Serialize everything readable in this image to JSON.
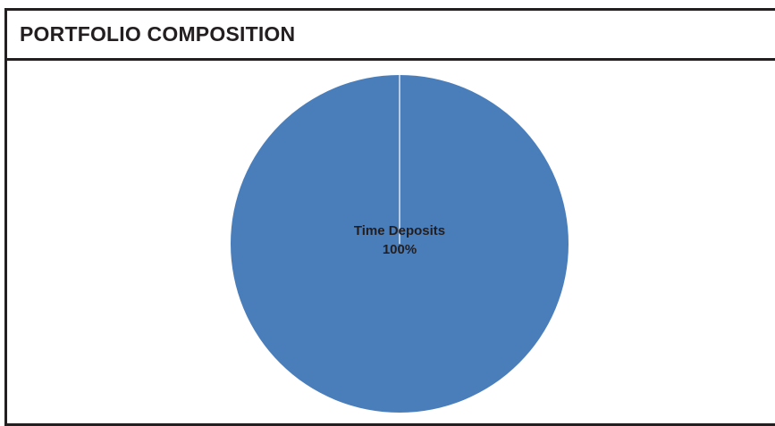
{
  "header": {
    "title": "PORTFOLIO COMPOSITION"
  },
  "chart_data": {
    "type": "pie",
    "title": "",
    "slices": [
      {
        "label": "Time Deposits",
        "value": 100,
        "percent_label": "100%",
        "color": "#4a7ebb"
      }
    ],
    "colors": {
      "slice_fill": "#4a7ebb",
      "slice_border": "#ffffff",
      "frame": "#231f20"
    }
  }
}
